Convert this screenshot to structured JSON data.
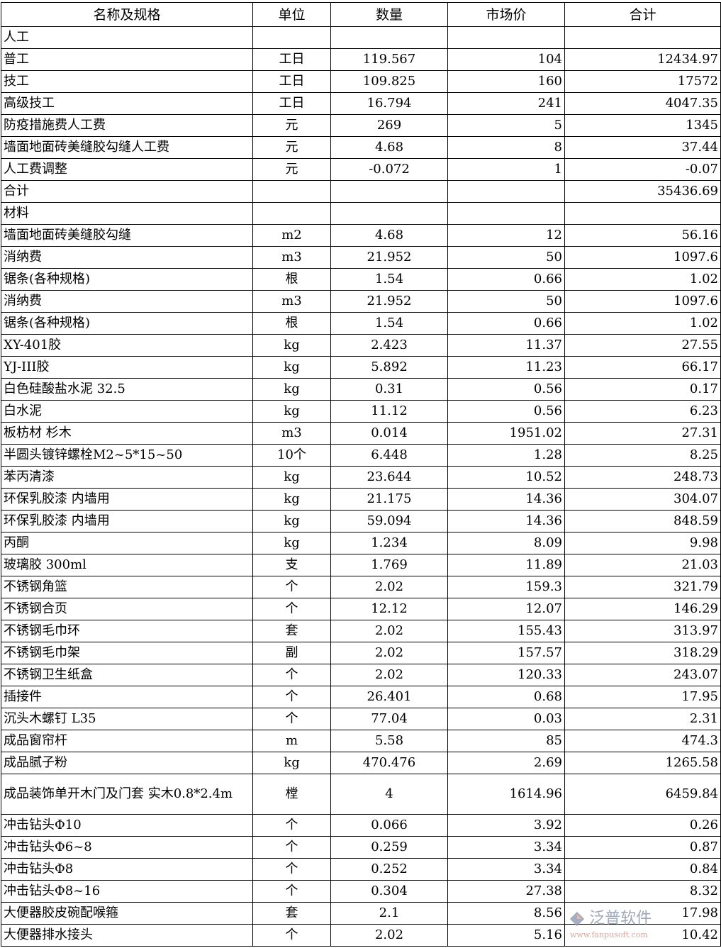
{
  "headers": [
    "名称及规格",
    "单位",
    "数量",
    "市场价",
    "合计"
  ],
  "rows": [
    [
      "人工",
      "",
      "",
      "",
      ""
    ],
    [
      "普工",
      "工日",
      "119.567",
      "104",
      "12434.97"
    ],
    [
      "技工",
      "工日",
      "109.825",
      "160",
      "17572"
    ],
    [
      "高级技工",
      "工日",
      "16.794",
      "241",
      "4047.35"
    ],
    [
      "防疫措施费人工费",
      "元",
      "269",
      "5",
      "1345"
    ],
    [
      "墙面地面砖美缝胶勾缝人工费",
      "元",
      "4.68",
      "8",
      "37.44"
    ],
    [
      "人工费调整",
      "元",
      "-0.072",
      "1",
      "-0.07"
    ],
    [
      "合计",
      "",
      "",
      "",
      "35436.69"
    ],
    [
      "材料",
      "",
      "",
      "",
      ""
    ],
    [
      "墙面地面砖美缝胶勾缝",
      "m2",
      "4.68",
      "12",
      "56.16"
    ],
    [
      "消纳费",
      "m3",
      "21.952",
      "50",
      "1097.6"
    ],
    [
      "锯条(各种规格)",
      "根",
      "1.54",
      "0.66",
      "1.02"
    ],
    [
      "消纳费",
      "m3",
      "21.952",
      "50",
      "1097.6"
    ],
    [
      "锯条(各种规格)",
      "根",
      "1.54",
      "0.66",
      "1.02"
    ],
    [
      "XY-401胶",
      "kg",
      "2.423",
      "11.37",
      "27.55"
    ],
    [
      "YJ-III胶",
      "kg",
      "5.892",
      "11.23",
      "66.17"
    ],
    [
      "白色硅酸盐水泥 32.5",
      "kg",
      "0.31",
      "0.56",
      "0.17"
    ],
    [
      "白水泥",
      "kg",
      "11.12",
      "0.56",
      "6.23"
    ],
    [
      "板枋材 杉木",
      "m3",
      "0.014",
      "1951.02",
      "27.31"
    ],
    [
      "半圆头镀锌螺栓M2~5*15~50",
      "10个",
      "6.448",
      "1.28",
      "8.25"
    ],
    [
      "苯丙清漆",
      "kg",
      "23.644",
      "10.52",
      "248.73"
    ],
    [
      "环保乳胶漆 内墙用",
      "kg",
      "21.175",
      "14.36",
      "304.07"
    ],
    [
      "环保乳胶漆 内墙用",
      "kg",
      "59.094",
      "14.36",
      "848.59"
    ],
    [
      "丙酮",
      "kg",
      "1.234",
      "8.09",
      "9.98"
    ],
    [
      "玻璃胶 300ml",
      "支",
      "1.769",
      "11.89",
      "21.03"
    ],
    [
      "不锈钢角篮",
      "个",
      "2.02",
      "159.3",
      "321.79"
    ],
    [
      "不锈钢合页",
      "个",
      "12.12",
      "12.07",
      "146.29"
    ],
    [
      "不锈钢毛巾环",
      "套",
      "2.02",
      "155.43",
      "313.97"
    ],
    [
      "不锈钢毛巾架",
      "副",
      "2.02",
      "157.57",
      "318.29"
    ],
    [
      "不锈钢卫生纸盒",
      "个",
      "2.02",
      "120.33",
      "243.07"
    ],
    [
      "插接件",
      "个",
      "26.401",
      "0.68",
      "17.95"
    ],
    [
      "沉头木螺钉 L35",
      "个",
      "77.04",
      "0.03",
      "2.31"
    ],
    [
      "成品窗帘杆",
      "m",
      "5.58",
      "85",
      "474.3"
    ],
    [
      "成品腻子粉",
      "kg",
      "470.476",
      "2.69",
      "1265.58"
    ],
    [
      "成品装饰单开木门及门套 实木0.8*2.4m",
      "樘",
      "4",
      "1614.96",
      "6459.84"
    ],
    [
      "冲击钻头Φ10",
      "个",
      "0.066",
      "3.92",
      "0.26"
    ],
    [
      "冲击钻头Φ6~8",
      "个",
      "0.259",
      "3.34",
      "0.87"
    ],
    [
      "冲击钻头Φ8",
      "个",
      "0.252",
      "3.34",
      "0.84"
    ],
    [
      "冲击钻头Φ8~16",
      "个",
      "0.304",
      "27.38",
      "8.32"
    ],
    [
      "大便器胶皮碗配喉箍",
      "套",
      "2.1",
      "8.56",
      "17.98"
    ],
    [
      "大便器排水接头",
      "个",
      "2.02",
      "5.16",
      "10.42"
    ]
  ],
  "watermark": {
    "brand": "泛普软件",
    "url": "www.fanpusoft.com"
  }
}
